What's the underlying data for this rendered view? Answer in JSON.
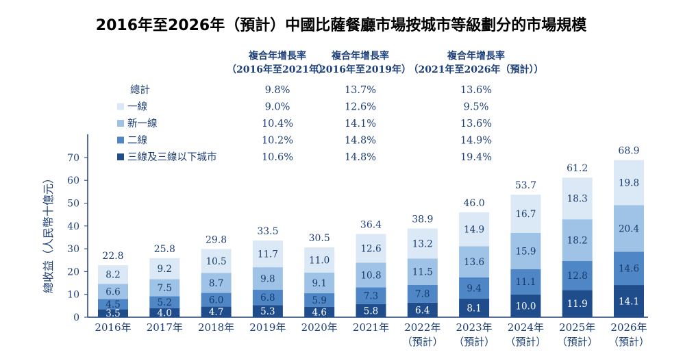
{
  "chart_data": {
    "type": "bar",
    "stacked": true,
    "title": "2016年至2026年（預計）中國比薩餐廳市場按城市等級劃分的市場規模",
    "ylabel": "總收益（人民幣十億元）",
    "ylim": [
      0,
      80
    ],
    "yticks": [
      "0",
      "10",
      "20",
      "30",
      "40",
      "50",
      "60",
      "70"
    ],
    "categories": [
      {
        "line1": "2016年",
        "line2": ""
      },
      {
        "line1": "2017年",
        "line2": ""
      },
      {
        "line1": "2018年",
        "line2": ""
      },
      {
        "line1": "2019年",
        "line2": ""
      },
      {
        "line1": "2020年",
        "line2": ""
      },
      {
        "line1": "2021年",
        "line2": ""
      },
      {
        "line1": "2022年",
        "line2": "（預計）"
      },
      {
        "line1": "2023年",
        "line2": "（預計）"
      },
      {
        "line1": "2024年",
        "line2": "（預計）"
      },
      {
        "line1": "2025年",
        "line2": "（預計）"
      },
      {
        "line1": "2026年",
        "line2": "（預計）"
      }
    ],
    "series": [
      {
        "name": "三線及三線以下城市",
        "color": "#1f4d8c",
        "label_color": "#ffffff",
        "values": [
          3.5,
          4.0,
          4.7,
          5.3,
          4.6,
          5.8,
          6.4,
          8.1,
          10.0,
          11.9,
          14.1
        ]
      },
      {
        "name": "二線",
        "color": "#4f86c6",
        "label_color": "#163a6b",
        "values": [
          4.5,
          5.2,
          6.0,
          6.8,
          5.9,
          7.3,
          7.8,
          9.4,
          11.1,
          12.8,
          14.6
        ]
      },
      {
        "name": "新一線",
        "color": "#9fc3e7",
        "label_color": "#163a6b",
        "values": [
          6.6,
          7.5,
          8.7,
          9.8,
          9.1,
          10.8,
          11.5,
          13.6,
          15.9,
          18.2,
          20.4
        ]
      },
      {
        "name": "一線",
        "color": "#dbe9f6",
        "label_color": "#163a6b",
        "values": [
          8.2,
          9.2,
          10.5,
          11.7,
          11.0,
          12.6,
          13.2,
          14.9,
          16.7,
          18.3,
          19.8
        ]
      }
    ],
    "totals": [
      22.8,
      25.8,
      29.8,
      33.5,
      30.5,
      36.4,
      38.9,
      46.0,
      53.7,
      61.2,
      68.9
    ],
    "legend_position": "top-left",
    "cagr_table": {
      "headers": [
        {
          "line1": "複合年增長率",
          "line2": "（2016年至2021年）"
        },
        {
          "line1": "複合年增長率",
          "line2": "（2016年至2019年）"
        },
        {
          "line1": "複合年增長率",
          "line2": "（2021年至2026年（預計））"
        }
      ],
      "rows": [
        {
          "label": "總計",
          "swatch": "",
          "values": [
            "9.8%",
            "13.7%",
            "13.6%"
          ]
        },
        {
          "label": "一線",
          "swatch": "#dbe9f6",
          "values": [
            "9.0%",
            "12.6%",
            "9.5%"
          ]
        },
        {
          "label": "新一線",
          "swatch": "#9fc3e7",
          "values": [
            "10.4%",
            "14.1%",
            "13.6%"
          ]
        },
        {
          "label": "二線",
          "swatch": "#4f86c6",
          "values": [
            "10.2%",
            "14.8%",
            "14.9%"
          ]
        },
        {
          "label": "三線及三線以下城市",
          "swatch": "#1f4d8c",
          "values": [
            "10.6%",
            "14.8%",
            "19.4%"
          ]
        }
      ]
    }
  }
}
